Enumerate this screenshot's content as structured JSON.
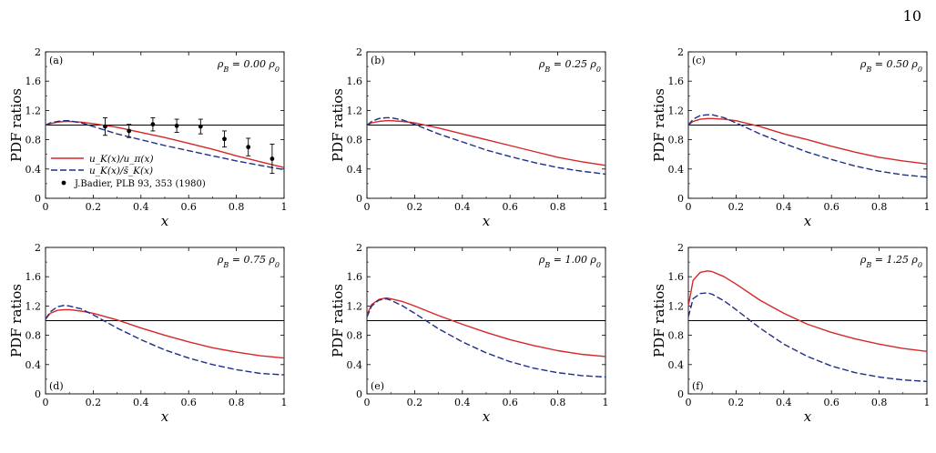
{
  "page_number": "10",
  "colors": {
    "red": "#d62728",
    "blue": "#1f2e85",
    "data": "#000000"
  },
  "chart_data": [
    {
      "type": "line",
      "panel": "(a)",
      "annotation": "ρ_B = 0.00 ρ_0",
      "xlabel": "x",
      "ylabel": "PDF ratios",
      "xlim": [
        0,
        1
      ],
      "ylim": [
        0,
        2
      ],
      "xticks": [
        "0",
        "0.2",
        "0.4",
        "0.6",
        "0.8",
        "1"
      ],
      "yticks": [
        "0",
        "0.4",
        "0.8",
        "1.2",
        "1.6",
        "2"
      ],
      "reference_line": 1,
      "legend": {
        "placement": "bottom-left",
        "entries": [
          "u_K(x)/u_π(x)",
          "u_K(x)/s̄_K(x)",
          "J.Badier, PLB 93, 353 (1980)"
        ]
      },
      "x": [
        0,
        0.02,
        0.05,
        0.08,
        0.1,
        0.15,
        0.2,
        0.3,
        0.4,
        0.5,
        0.6,
        0.7,
        0.8,
        0.9,
        1.0
      ],
      "series": [
        {
          "color": "red",
          "dash": "solid",
          "values": [
            1.0,
            1.02,
            1.04,
            1.05,
            1.05,
            1.04,
            1.02,
            0.97,
            0.9,
            0.83,
            0.75,
            0.67,
            0.58,
            0.5,
            0.42
          ]
        },
        {
          "color": "blue",
          "dash": "dashed",
          "values": [
            1.0,
            1.03,
            1.05,
            1.06,
            1.06,
            1.03,
            0.98,
            0.88,
            0.8,
            0.72,
            0.65,
            0.58,
            0.51,
            0.45,
            0.39
          ]
        }
      ],
      "points": {
        "x": [
          0.25,
          0.35,
          0.45,
          0.55,
          0.65,
          0.75,
          0.85,
          0.95
        ],
        "y": [
          0.98,
          0.92,
          1.01,
          0.99,
          0.98,
          0.81,
          0.7,
          0.54
        ],
        "err": [
          0.12,
          0.09,
          0.09,
          0.09,
          0.1,
          0.11,
          0.12,
          0.2
        ]
      }
    },
    {
      "type": "line",
      "panel": "(b)",
      "annotation": "ρ_B = 0.25 ρ_0",
      "xlabel": "x",
      "ylabel": "PDF ratios",
      "xlim": [
        0,
        1
      ],
      "ylim": [
        0,
        2
      ],
      "xticks": [
        "0",
        "0.2",
        "0.4",
        "0.6",
        "0.8",
        "1"
      ],
      "yticks": [
        "0",
        "0.4",
        "0.8",
        "1.2",
        "1.6",
        "2"
      ],
      "reference_line": 1,
      "x": [
        0,
        0.02,
        0.05,
        0.08,
        0.1,
        0.15,
        0.2,
        0.3,
        0.4,
        0.5,
        0.6,
        0.7,
        0.8,
        0.9,
        1.0
      ],
      "series": [
        {
          "color": "red",
          "dash": "solid",
          "values": [
            1.0,
            1.03,
            1.05,
            1.06,
            1.06,
            1.05,
            1.03,
            0.96,
            0.88,
            0.8,
            0.72,
            0.64,
            0.56,
            0.5,
            0.45
          ]
        },
        {
          "color": "blue",
          "dash": "dashed",
          "values": [
            1.0,
            1.05,
            1.09,
            1.1,
            1.1,
            1.07,
            1.01,
            0.88,
            0.77,
            0.66,
            0.57,
            0.49,
            0.42,
            0.37,
            0.33
          ]
        }
      ]
    },
    {
      "type": "line",
      "panel": "(c)",
      "annotation": "ρ_B = 0.50 ρ_0",
      "xlabel": "x",
      "ylabel": "PDF ratios",
      "xlim": [
        0,
        1
      ],
      "ylim": [
        0,
        2
      ],
      "xticks": [
        "0",
        "0.2",
        "0.4",
        "0.6",
        "0.8",
        "1"
      ],
      "yticks": [
        "0",
        "0.4",
        "0.8",
        "1.2",
        "1.6",
        "2"
      ],
      "reference_line": 1,
      "x": [
        0,
        0.02,
        0.05,
        0.08,
        0.1,
        0.15,
        0.2,
        0.3,
        0.4,
        0.5,
        0.6,
        0.7,
        0.8,
        0.9,
        1.0
      ],
      "series": [
        {
          "color": "red",
          "dash": "solid",
          "values": [
            1.0,
            1.05,
            1.08,
            1.09,
            1.09,
            1.08,
            1.06,
            0.98,
            0.88,
            0.8,
            0.71,
            0.63,
            0.56,
            0.51,
            0.47
          ]
        },
        {
          "color": "blue",
          "dash": "dashed",
          "values": [
            1.0,
            1.08,
            1.13,
            1.14,
            1.14,
            1.1,
            1.03,
            0.88,
            0.75,
            0.63,
            0.53,
            0.44,
            0.37,
            0.32,
            0.29
          ]
        }
      ]
    },
    {
      "type": "line",
      "panel": "(d)",
      "annotation": "ρ_B = 0.75 ρ_0",
      "xlabel": "x",
      "ylabel": "PDF ratios",
      "xlim": [
        0,
        1
      ],
      "ylim": [
        0,
        2
      ],
      "xticks": [
        "0",
        "0.2",
        "0.4",
        "0.6",
        "0.8",
        "1"
      ],
      "yticks": [
        "0",
        "0.4",
        "0.8",
        "1.2",
        "1.6",
        "2"
      ],
      "reference_line": 1,
      "x": [
        0,
        0.02,
        0.05,
        0.08,
        0.1,
        0.15,
        0.2,
        0.3,
        0.4,
        0.5,
        0.6,
        0.7,
        0.8,
        0.9,
        1.0
      ],
      "series": [
        {
          "color": "red",
          "dash": "solid",
          "values": [
            1.02,
            1.1,
            1.14,
            1.15,
            1.15,
            1.13,
            1.1,
            1.01,
            0.9,
            0.8,
            0.71,
            0.63,
            0.57,
            0.52,
            0.49
          ]
        },
        {
          "color": "blue",
          "dash": "dashed",
          "values": [
            1.02,
            1.12,
            1.19,
            1.21,
            1.2,
            1.16,
            1.08,
            0.9,
            0.74,
            0.6,
            0.49,
            0.4,
            0.33,
            0.28,
            0.26
          ]
        }
      ]
    },
    {
      "type": "line",
      "panel": "(e)",
      "annotation": "ρ_B = 1.00 ρ_0",
      "xlabel": "x",
      "ylabel": "PDF ratios",
      "xlim": [
        0,
        1
      ],
      "ylim": [
        0,
        2
      ],
      "xticks": [
        "0",
        "0.2",
        "0.4",
        "0.6",
        "0.8",
        "1"
      ],
      "yticks": [
        "0",
        "0.4",
        "0.8",
        "1.2",
        "1.6",
        "2"
      ],
      "reference_line": 1,
      "x": [
        0,
        0.02,
        0.05,
        0.08,
        0.1,
        0.15,
        0.2,
        0.3,
        0.4,
        0.5,
        0.6,
        0.7,
        0.8,
        0.9,
        1.0
      ],
      "series": [
        {
          "color": "red",
          "dash": "solid",
          "values": [
            1.08,
            1.22,
            1.29,
            1.31,
            1.3,
            1.26,
            1.2,
            1.07,
            0.95,
            0.84,
            0.74,
            0.66,
            0.59,
            0.54,
            0.51
          ]
        },
        {
          "color": "blue",
          "dash": "dashed",
          "values": [
            1.05,
            1.2,
            1.28,
            1.3,
            1.28,
            1.2,
            1.1,
            0.89,
            0.71,
            0.56,
            0.44,
            0.35,
            0.29,
            0.25,
            0.23
          ]
        }
      ]
    },
    {
      "type": "line",
      "panel": "(f)",
      "annotation": "ρ_B = 1.25 ρ_0",
      "xlabel": "x",
      "ylabel": "PDF ratios",
      "xlim": [
        0,
        1
      ],
      "ylim": [
        0,
        2
      ],
      "xticks": [
        "0",
        "0.2",
        "0.4",
        "0.6",
        "0.8",
        "1"
      ],
      "yticks": [
        "0",
        "0.4",
        "0.8",
        "1.2",
        "1.6",
        "2"
      ],
      "reference_line": 1,
      "x": [
        0,
        0.02,
        0.05,
        0.08,
        0.1,
        0.15,
        0.2,
        0.3,
        0.4,
        0.5,
        0.6,
        0.7,
        0.8,
        0.9,
        1.0
      ],
      "series": [
        {
          "color": "red",
          "dash": "solid",
          "values": [
            1.2,
            1.55,
            1.66,
            1.68,
            1.67,
            1.6,
            1.5,
            1.28,
            1.1,
            0.95,
            0.84,
            0.75,
            0.68,
            0.62,
            0.58
          ]
        },
        {
          "color": "blue",
          "dash": "dashed",
          "values": [
            1.05,
            1.3,
            1.37,
            1.38,
            1.36,
            1.27,
            1.15,
            0.9,
            0.68,
            0.51,
            0.38,
            0.29,
            0.23,
            0.19,
            0.17
          ]
        }
      ]
    }
  ]
}
